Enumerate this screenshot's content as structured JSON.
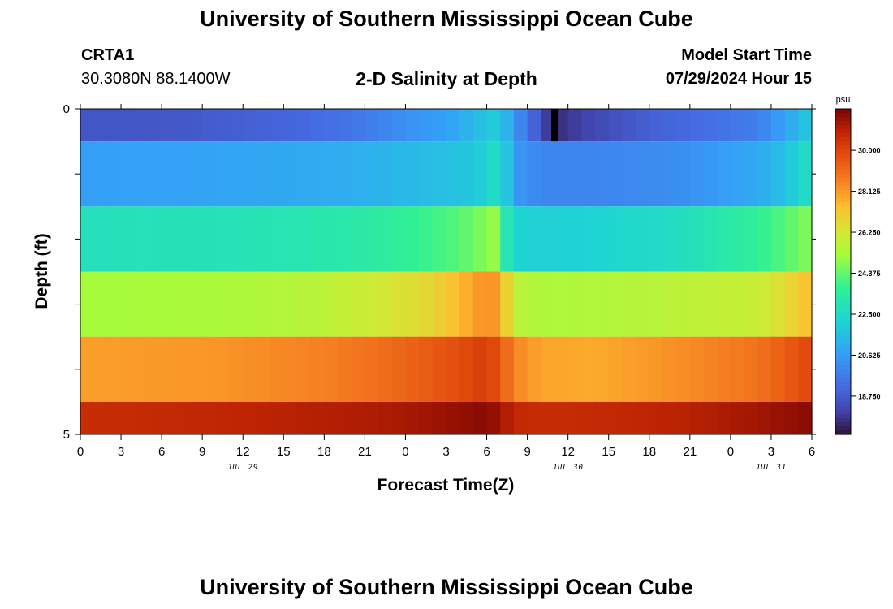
{
  "header": {
    "title": "University of Southern Mississippi Ocean Cube",
    "station": "CRTA1",
    "coordinates": "30.3080N  88.1400W",
    "subtitle": "2-D Salinity at Depth",
    "model_start_label": "Model Start Time",
    "model_start_value": "07/29/2024 Hour 15"
  },
  "footer": {
    "title": "University of Southern Mississippi Ocean Cube"
  },
  "chart_data": {
    "type": "heatmap",
    "title": "2-D Salinity at Depth",
    "xlabel": "Forecast Time(Z)",
    "ylabel": "Depth (ft)",
    "x_range": [
      0,
      54
    ],
    "x_units": "hours since JUL 29 00Z",
    "x_tick_labels": [
      "0",
      "3",
      "6",
      "9",
      "12",
      "15",
      "18",
      "21",
      "0",
      "3",
      "6",
      "9",
      "12",
      "15",
      "18",
      "21",
      "0",
      "3",
      "6"
    ],
    "date_labels": [
      {
        "text": "JUL 29",
        "hour": 12
      },
      {
        "text": "JUL 30",
        "hour": 36
      },
      {
        "text": "JUL 31",
        "hour": 51
      }
    ],
    "y_range": [
      0,
      5
    ],
    "y_tick_labels": [
      "0",
      "5"
    ],
    "depth_layers": [
      0,
      1,
      2,
      3,
      4,
      5
    ],
    "now_marker_hour": 35,
    "colorbar": {
      "units": "psu",
      "range": [
        17.0,
        31.9
      ],
      "tick_values": [
        18.75,
        20.625,
        22.5,
        24.375,
        26.25,
        28.125,
        30.0
      ],
      "tick_labels": [
        "18.750",
        "20.625",
        "22.500",
        "24.375",
        "26.250",
        "28.125",
        "30.000"
      ]
    },
    "series": [
      {
        "name": "depth 0 ft",
        "hours": [
          0,
          4,
          8,
          12,
          16,
          20,
          24,
          26,
          28,
          30,
          31,
          32,
          33,
          34,
          34.5,
          35,
          36,
          38,
          42,
          46,
          50,
          52,
          54
        ],
        "values": [
          18.6,
          18.6,
          18.7,
          18.9,
          19.1,
          19.5,
          20.3,
          20.6,
          21.0,
          21.8,
          22.0,
          20.5,
          19.5,
          18.5,
          17.9,
          17.5,
          17.8,
          18.2,
          18.9,
          19.3,
          19.8,
          20.8,
          22.0
        ]
      },
      {
        "name": "depth 1 ft",
        "hours": [
          0,
          8,
          16,
          20,
          24,
          28,
          30,
          31,
          32,
          34,
          38,
          44,
          50,
          52,
          54
        ],
        "values": [
          20.7,
          20.8,
          21.0,
          21.1,
          21.4,
          21.7,
          22.1,
          23.0,
          20.5,
          20.0,
          20.0,
          20.2,
          21.0,
          21.6,
          22.8
        ]
      },
      {
        "name": "depth 2 ft",
        "hours": [
          0,
          12,
          20,
          24,
          28,
          30,
          31,
          31.5,
          32,
          33,
          36,
          44,
          50,
          54
        ],
        "values": [
          22.8,
          22.9,
          23.2,
          23.6,
          24.2,
          24.8,
          25.2,
          23.0,
          22.3,
          22.1,
          22.1,
          22.6,
          23.6,
          24.8
        ]
      },
      {
        "name": "depth 3 ft",
        "hours": [
          0,
          12,
          18,
          22,
          26,
          28,
          30,
          31,
          32,
          34,
          38,
          44,
          50,
          52,
          54
        ],
        "values": [
          25.2,
          25.4,
          25.7,
          26.2,
          26.8,
          27.5,
          28.4,
          28.0,
          25.8,
          25.4,
          25.5,
          25.7,
          26.0,
          26.6,
          27.5
        ]
      },
      {
        "name": "depth 4 ft",
        "hours": [
          0,
          10,
          18,
          22,
          26,
          28,
          30,
          31,
          32,
          34,
          38,
          44,
          50,
          52,
          54
        ],
        "values": [
          28.0,
          28.2,
          28.6,
          29.0,
          29.5,
          29.8,
          30.2,
          29.6,
          28.5,
          27.9,
          27.8,
          28.3,
          28.9,
          29.4,
          30.0
        ]
      },
      {
        "name": "depth 5 ft",
        "hours": [
          0,
          10,
          18,
          24,
          28,
          30,
          31,
          32,
          34,
          38,
          44,
          50,
          54
        ],
        "values": [
          30.6,
          30.8,
          31.0,
          31.2,
          31.5,
          31.7,
          31.3,
          30.8,
          30.6,
          30.7,
          30.9,
          31.3,
          31.7
        ]
      }
    ]
  }
}
